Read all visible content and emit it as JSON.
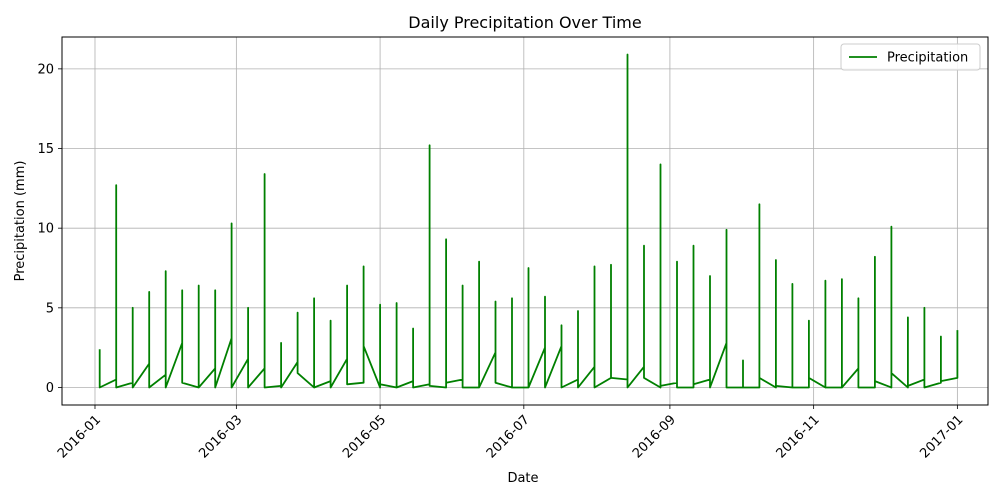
{
  "chart_data": {
    "type": "line",
    "title": "Daily Precipitation Over Time",
    "xlabel": "Date",
    "ylabel": "Precipitation (mm)",
    "xlim": [
      "2015-12-18",
      "2017-01-14"
    ],
    "ylim": [
      -1.1,
      22.0
    ],
    "xticks": [
      "2016-01",
      "2016-03",
      "2016-05",
      "2016-07",
      "2016-09",
      "2016-11",
      "2017-01"
    ],
    "yticks": [
      0,
      5,
      10,
      15,
      20
    ],
    "grid": true,
    "legend": {
      "position": "top-right",
      "entries": [
        "Precipitation"
      ]
    },
    "series": [
      {
        "name": "Precipitation",
        "color": "#008000",
        "x": [
          "2016-01-03",
          "2016-01-03",
          "2016-01-10",
          "2016-01-10",
          "2016-01-10",
          "2016-01-17",
          "2016-01-17",
          "2016-01-17",
          "2016-01-24",
          "2016-01-24",
          "2016-01-24",
          "2016-01-31",
          "2016-01-31",
          "2016-01-31",
          "2016-02-07",
          "2016-02-07",
          "2016-02-07",
          "2016-02-14",
          "2016-02-14",
          "2016-02-14",
          "2016-02-21",
          "2016-02-21",
          "2016-02-21",
          "2016-02-28",
          "2016-02-28",
          "2016-02-28",
          "2016-03-06",
          "2016-03-06",
          "2016-03-06",
          "2016-03-13",
          "2016-03-13",
          "2016-03-13",
          "2016-03-20",
          "2016-03-20",
          "2016-03-20",
          "2016-03-27",
          "2016-03-27",
          "2016-03-27",
          "2016-04-03",
          "2016-04-03",
          "2016-04-03",
          "2016-04-10",
          "2016-04-10",
          "2016-04-10",
          "2016-04-17",
          "2016-04-17",
          "2016-04-17",
          "2016-04-24",
          "2016-04-24",
          "2016-04-24",
          "2016-05-01",
          "2016-05-01",
          "2016-05-01",
          "2016-05-08",
          "2016-05-08",
          "2016-05-08",
          "2016-05-15",
          "2016-05-15",
          "2016-05-15",
          "2016-05-22",
          "2016-05-22",
          "2016-05-22",
          "2016-05-29",
          "2016-05-29",
          "2016-05-29",
          "2016-06-05",
          "2016-06-05",
          "2016-06-05",
          "2016-06-12",
          "2016-06-12",
          "2016-06-12",
          "2016-06-19",
          "2016-06-19",
          "2016-06-19",
          "2016-06-26",
          "2016-06-26",
          "2016-06-26",
          "2016-07-03",
          "2016-07-03",
          "2016-07-03",
          "2016-07-10",
          "2016-07-10",
          "2016-07-10",
          "2016-07-17",
          "2016-07-17",
          "2016-07-17",
          "2016-07-24",
          "2016-07-24",
          "2016-07-24",
          "2016-07-31",
          "2016-07-31",
          "2016-07-31",
          "2016-08-07",
          "2016-08-07",
          "2016-08-07",
          "2016-08-14",
          "2016-08-14",
          "2016-08-14",
          "2016-08-21",
          "2016-08-21",
          "2016-08-21",
          "2016-08-28",
          "2016-08-28",
          "2016-08-28",
          "2016-09-04",
          "2016-09-04",
          "2016-09-04",
          "2016-09-11",
          "2016-09-11",
          "2016-09-11",
          "2016-09-18",
          "2016-09-18",
          "2016-09-18",
          "2016-09-25",
          "2016-09-25",
          "2016-09-25",
          "2016-10-02",
          "2016-10-02",
          "2016-10-02",
          "2016-10-09",
          "2016-10-09",
          "2016-10-09",
          "2016-10-16",
          "2016-10-16",
          "2016-10-16",
          "2016-10-23",
          "2016-10-23",
          "2016-10-23",
          "2016-10-30",
          "2016-10-30",
          "2016-10-30",
          "2016-11-06",
          "2016-11-06",
          "2016-11-06",
          "2016-11-13",
          "2016-11-13",
          "2016-11-13",
          "2016-11-20",
          "2016-11-20",
          "2016-11-20",
          "2016-11-27",
          "2016-11-27",
          "2016-11-27",
          "2016-12-04",
          "2016-12-04",
          "2016-12-04",
          "2016-12-11",
          "2016-12-11",
          "2016-12-11",
          "2016-12-18",
          "2016-12-18",
          "2016-12-18",
          "2016-12-25",
          "2016-12-25",
          "2016-12-25",
          "2017-01-01",
          "2017-01-01"
        ],
        "values": [
          2.4,
          0.0,
          0.5,
          12.7,
          0.0,
          0.3,
          5.0,
          0.0,
          1.5,
          6.0,
          0.0,
          0.8,
          7.3,
          0.0,
          2.8,
          6.1,
          0.3,
          0.0,
          6.4,
          0.0,
          1.2,
          6.1,
          0.0,
          3.1,
          10.3,
          0.0,
          1.8,
          5.0,
          0.0,
          1.2,
          13.4,
          0.0,
          0.1,
          2.8,
          0.0,
          1.6,
          4.7,
          0.9,
          0.0,
          5.6,
          0.0,
          0.4,
          4.2,
          0.0,
          1.8,
          6.4,
          0.2,
          0.3,
          7.6,
          2.6,
          0.0,
          5.2,
          0.2,
          0.0,
          5.3,
          0.0,
          0.4,
          3.7,
          0.0,
          0.2,
          15.2,
          0.1,
          0.0,
          9.3,
          0.3,
          0.5,
          6.4,
          0.0,
          0.0,
          7.9,
          0.0,
          2.2,
          5.4,
          0.3,
          0.0,
          5.6,
          0.0,
          0.0,
          7.5,
          0.0,
          2.5,
          5.7,
          0.0,
          2.6,
          3.9,
          0.0,
          0.5,
          4.8,
          0.0,
          1.3,
          7.6,
          0.0,
          0.6,
          7.7,
          0.6,
          0.5,
          20.9,
          0.0,
          1.3,
          8.9,
          0.6,
          0.0,
          14.0,
          0.1,
          0.3,
          7.9,
          0.0,
          0.0,
          8.9,
          0.2,
          0.5,
          7.0,
          0.0,
          2.8,
          9.9,
          0.0,
          0.0,
          1.7,
          0.0,
          0.0,
          11.5,
          0.6,
          0.0,
          8.0,
          0.1,
          0.0,
          6.5,
          0.0,
          0.0,
          4.2,
          0.6,
          0.0,
          6.7,
          0.0,
          0.0,
          6.8,
          0.0,
          1.2,
          5.6,
          0.0,
          0.0,
          8.2,
          0.4,
          0.0,
          10.1,
          0.9,
          0.0,
          4.4,
          0.1,
          0.5,
          5.0,
          0.0,
          0.3,
          3.2,
          0.4,
          0.6,
          3.6
        ]
      }
    ]
  }
}
